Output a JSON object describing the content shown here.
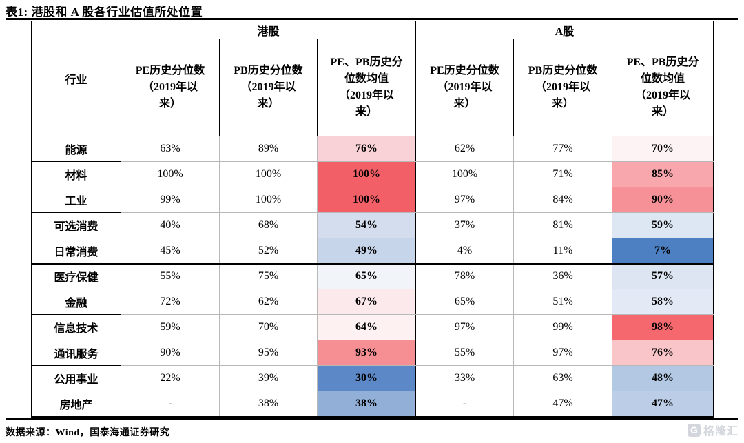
{
  "title": "表1: 港股和 A 股各行业估值所处位置",
  "source_note": "数据来源：Wind，国泰海通证券研究",
  "watermark": {
    "logo_letter": "G",
    "text": "格隆汇"
  },
  "table": {
    "industry_header": "行业",
    "hk_group": "港股",
    "a_group": "A股",
    "headers": {
      "hk_pe": "PE历史分位数\n（2019年以\n来）",
      "hk_pb": "PB历史分位数\n（2019年以\n来）",
      "hk_avg": "PE、PB历史分\n位数均值\n（2019年以\n来）",
      "a_pe": "PE历史分位数\n（2019年以\n来）",
      "a_pb": "PB历史分位数\n（2019年以\n来）",
      "a_avg": "PE、PB历史分\n位数均值\n（2019年以\n来）"
    },
    "rows": [
      {
        "industry": "能源",
        "hk_pe": "63%",
        "hk_pb": "89%",
        "hk_avg": "76%",
        "hk_avg_bg": "#f8d2d6",
        "a_pe": "62%",
        "a_pb": "77%",
        "a_avg": "70%",
        "a_avg_bg": "#fdf3f4"
      },
      {
        "industry": "材料",
        "hk_pe": "100%",
        "hk_pb": "100%",
        "hk_avg": "100%",
        "hk_avg_bg": "#f25f66",
        "a_pe": "100%",
        "a_pb": "71%",
        "a_avg": "85%",
        "a_avg_bg": "#f8a7ac"
      },
      {
        "industry": "工业",
        "hk_pe": "99%",
        "hk_pb": "100%",
        "hk_avg": "100%",
        "hk_avg_bg": "#f25f66",
        "a_pe": "97%",
        "a_pb": "84%",
        "a_avg": "90%",
        "a_avg_bg": "#f69297"
      },
      {
        "industry": "可选消费",
        "hk_pe": "40%",
        "hk_pb": "68%",
        "hk_avg": "54%",
        "hk_avg_bg": "#d4ddee",
        "a_pe": "37%",
        "a_pb": "81%",
        "a_avg": "59%",
        "a_avg_bg": "#dde6f3"
      },
      {
        "industry": "日常消费",
        "hk_pe": "45%",
        "hk_pb": "52%",
        "hk_avg": "49%",
        "hk_avg_bg": "#c7d5eb",
        "a_pe": "4%",
        "a_pb": "11%",
        "a_avg": "7%",
        "a_avg_bg": "#4d7fc3"
      },
      {
        "industry": "医疗保健",
        "hk_pe": "55%",
        "hk_pb": "75%",
        "hk_avg": "65%",
        "hk_avg_bg": "#f1f5fa",
        "a_pe": "78%",
        "a_pb": "36%",
        "a_avg": "57%",
        "a_avg_bg": "#dde5f2"
      },
      {
        "industry": "金融",
        "hk_pe": "72%",
        "hk_pb": "62%",
        "hk_avg": "67%",
        "hk_avg_bg": "#fce9eb",
        "a_pe": "65%",
        "a_pb": "51%",
        "a_avg": "58%",
        "a_avg_bg": "#e3eaf5"
      },
      {
        "industry": "信息技术",
        "hk_pe": "59%",
        "hk_pb": "70%",
        "hk_avg": "64%",
        "hk_avg_bg": "#fdf1f2",
        "a_pe": "97%",
        "a_pb": "99%",
        "a_avg": "98%",
        "a_avg_bg": "#f4686e"
      },
      {
        "industry": "通讯服务",
        "hk_pe": "90%",
        "hk_pb": "95%",
        "hk_avg": "93%",
        "hk_avg_bg": "#f68f94",
        "a_pe": "55%",
        "a_pb": "97%",
        "a_avg": "76%",
        "a_avg_bg": "#f9c5c9"
      },
      {
        "industry": "公用事业",
        "hk_pe": "22%",
        "hk_pb": "39%",
        "hk_avg": "30%",
        "hk_avg_bg": "#5c88c7",
        "a_pe": "33%",
        "a_pb": "63%",
        "a_avg": "48%",
        "a_avg_bg": "#b3c8e3"
      },
      {
        "industry": "房地产",
        "hk_pe": "-",
        "hk_pb": "38%",
        "hk_avg": "38%",
        "hk_avg_bg": "#92afd8",
        "a_pe": "-",
        "a_pb": "47%",
        "a_avg": "47%",
        "a_avg_bg": "#bccee7"
      }
    ]
  }
}
